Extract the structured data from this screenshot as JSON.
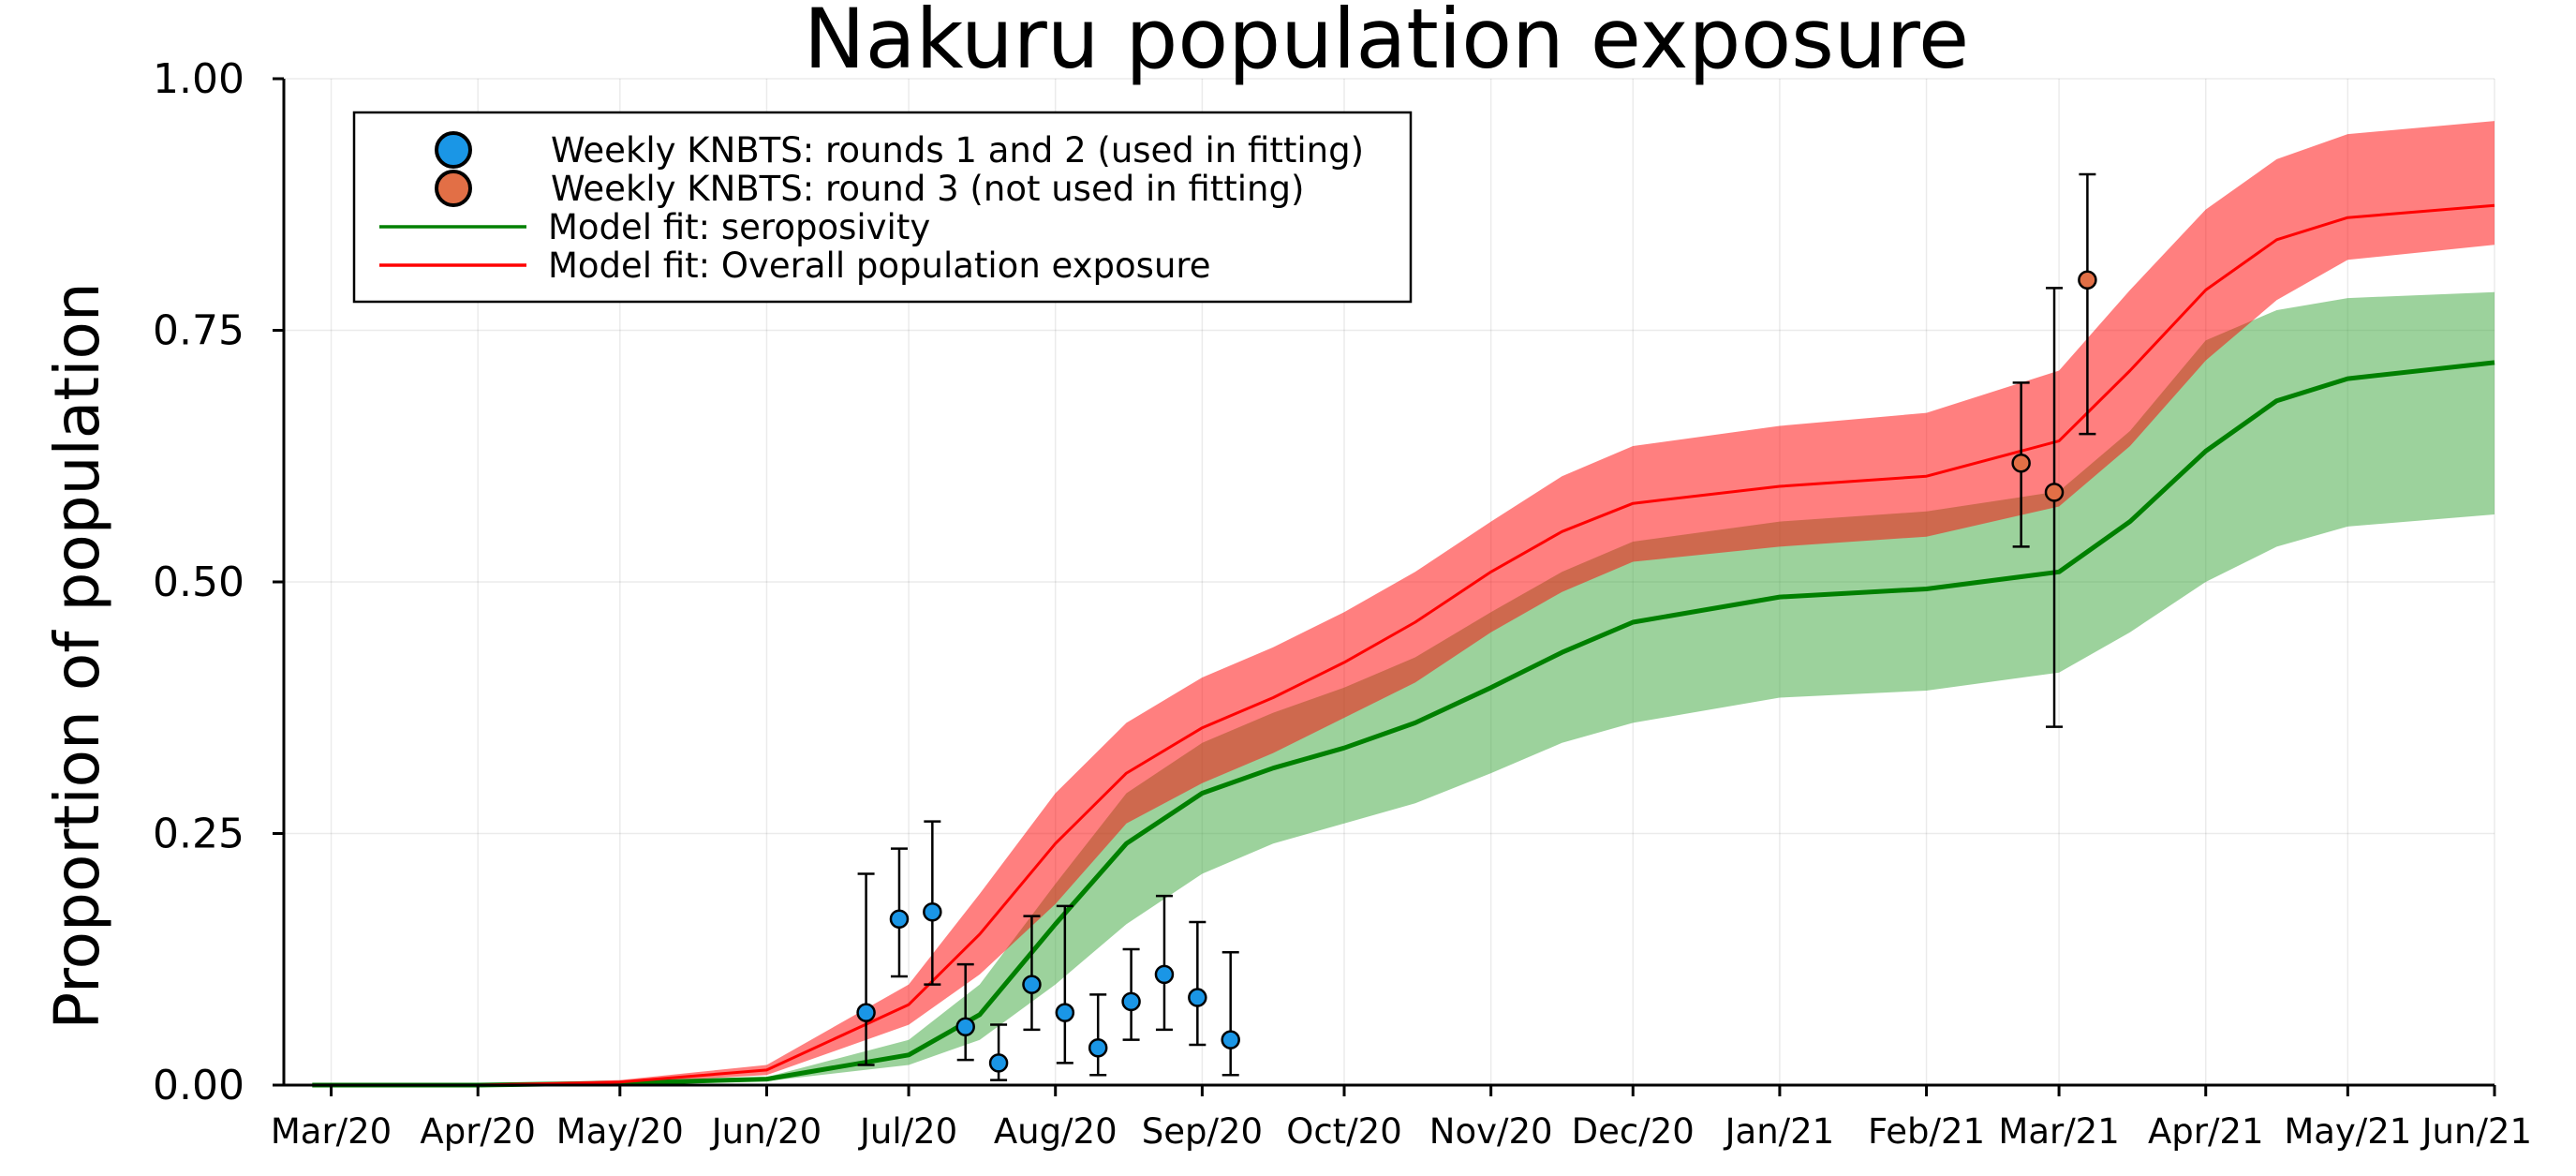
{
  "chart_data": {
    "type": "line",
    "title": "Nakuru population exposure",
    "xlabel": "",
    "ylabel": "Proportion of population",
    "x_range": [
      "2020-02-20",
      "2021-06-01"
    ],
    "ylim": [
      0,
      1
    ],
    "grid": true,
    "legend_placement": "top-left",
    "x_ticks": [
      {
        "date": "2020-03-01",
        "label": "Mar/20"
      },
      {
        "date": "2020-04-01",
        "label": "Apr/20"
      },
      {
        "date": "2020-05-01",
        "label": "May/20"
      },
      {
        "date": "2020-06-01",
        "label": "Jun/20"
      },
      {
        "date": "2020-07-01",
        "label": "Jul/20"
      },
      {
        "date": "2020-08-01",
        "label": "Aug/20"
      },
      {
        "date": "2020-09-01",
        "label": "Sep/20"
      },
      {
        "date": "2020-10-01",
        "label": "Oct/20"
      },
      {
        "date": "2020-11-01",
        "label": "Nov/20"
      },
      {
        "date": "2020-12-01",
        "label": "Dec/20"
      },
      {
        "date": "2021-01-01",
        "label": "Jan/21"
      },
      {
        "date": "2021-02-01",
        "label": "Feb/21"
      },
      {
        "date": "2021-03-01",
        "label": "Mar/21"
      },
      {
        "date": "2021-04-01",
        "label": "Apr/21"
      },
      {
        "date": "2021-05-01",
        "label": "May/21"
      },
      {
        "date": "2021-06-01",
        "label": "Jun/21"
      }
    ],
    "y_ticks": [
      {
        "value": 0.0,
        "label": "0.00"
      },
      {
        "value": 0.25,
        "label": "0.25"
      },
      {
        "value": 0.5,
        "label": "0.50"
      },
      {
        "value": 0.75,
        "label": "0.75"
      },
      {
        "value": 1.0,
        "label": "1.00"
      }
    ],
    "legend": [
      {
        "kind": "marker",
        "color": "#1a96e6",
        "label": "Weekly KNBTS: rounds 1 and 2 (used in fitting)"
      },
      {
        "kind": "marker",
        "color": "#e26f46",
        "label": "Weekly KNBTS: round 3 (not used in fitting)"
      },
      {
        "kind": "line",
        "color": "#008000",
        "label": "Model fit: seroposivity"
      },
      {
        "kind": "line",
        "color": "#ff0000",
        "label": "Model fit: Overall population exposure"
      }
    ],
    "series": [
      {
        "name": "Model fit: seroposivity",
        "kind": "line_with_band",
        "color": "#008000",
        "band_color": "#3aa53a",
        "points": [
          {
            "date": "2020-02-26",
            "y": 0.0,
            "lo": 0.0,
            "hi": 0.0
          },
          {
            "date": "2020-04-01",
            "y": 0.0,
            "lo": 0.0,
            "hi": 0.0
          },
          {
            "date": "2020-05-01",
            "y": 0.002,
            "lo": 0.001,
            "hi": 0.003
          },
          {
            "date": "2020-06-01",
            "y": 0.006,
            "lo": 0.004,
            "hi": 0.008
          },
          {
            "date": "2020-07-01",
            "y": 0.03,
            "lo": 0.02,
            "hi": 0.045
          },
          {
            "date": "2020-07-16",
            "y": 0.07,
            "lo": 0.045,
            "hi": 0.1
          },
          {
            "date": "2020-08-01",
            "y": 0.16,
            "lo": 0.1,
            "hi": 0.2
          },
          {
            "date": "2020-08-16",
            "y": 0.24,
            "lo": 0.16,
            "hi": 0.29
          },
          {
            "date": "2020-09-01",
            "y": 0.29,
            "lo": 0.21,
            "hi": 0.34
          },
          {
            "date": "2020-09-16",
            "y": 0.315,
            "lo": 0.24,
            "hi": 0.37
          },
          {
            "date": "2020-10-01",
            "y": 0.335,
            "lo": 0.26,
            "hi": 0.395
          },
          {
            "date": "2020-10-16",
            "y": 0.36,
            "lo": 0.28,
            "hi": 0.425
          },
          {
            "date": "2020-11-01",
            "y": 0.395,
            "lo": 0.31,
            "hi": 0.47
          },
          {
            "date": "2020-11-16",
            "y": 0.43,
            "lo": 0.34,
            "hi": 0.51
          },
          {
            "date": "2020-12-01",
            "y": 0.46,
            "lo": 0.36,
            "hi": 0.54
          },
          {
            "date": "2021-01-01",
            "y": 0.485,
            "lo": 0.385,
            "hi": 0.56
          },
          {
            "date": "2021-02-01",
            "y": 0.493,
            "lo": 0.392,
            "hi": 0.57
          },
          {
            "date": "2021-03-01",
            "y": 0.51,
            "lo": 0.41,
            "hi": 0.59
          },
          {
            "date": "2021-03-16",
            "y": 0.56,
            "lo": 0.45,
            "hi": 0.65
          },
          {
            "date": "2021-04-01",
            "y": 0.63,
            "lo": 0.5,
            "hi": 0.74
          },
          {
            "date": "2021-04-16",
            "y": 0.68,
            "lo": 0.535,
            "hi": 0.77
          },
          {
            "date": "2021-05-01",
            "y": 0.702,
            "lo": 0.555,
            "hi": 0.782
          },
          {
            "date": "2021-06-01",
            "y": 0.718,
            "lo": 0.567,
            "hi": 0.788
          }
        ]
      },
      {
        "name": "Model fit: Overall population exposure",
        "kind": "line_with_band",
        "color": "#ff0000",
        "band_color": "#ff0000",
        "points": [
          {
            "date": "2020-02-26",
            "y": 0.0,
            "lo": 0.0,
            "hi": 0.0
          },
          {
            "date": "2020-04-01",
            "y": 0.0,
            "lo": 0.0,
            "hi": 0.001
          },
          {
            "date": "2020-05-01",
            "y": 0.003,
            "lo": 0.002,
            "hi": 0.005
          },
          {
            "date": "2020-06-01",
            "y": 0.015,
            "lo": 0.01,
            "hi": 0.02
          },
          {
            "date": "2020-07-01",
            "y": 0.08,
            "lo": 0.06,
            "hi": 0.1
          },
          {
            "date": "2020-07-16",
            "y": 0.15,
            "lo": 0.11,
            "hi": 0.19
          },
          {
            "date": "2020-08-01",
            "y": 0.24,
            "lo": 0.18,
            "hi": 0.29
          },
          {
            "date": "2020-08-16",
            "y": 0.31,
            "lo": 0.26,
            "hi": 0.36
          },
          {
            "date": "2020-09-01",
            "y": 0.355,
            "lo": 0.3,
            "hi": 0.405
          },
          {
            "date": "2020-09-16",
            "y": 0.385,
            "lo": 0.33,
            "hi": 0.435
          },
          {
            "date": "2020-10-01",
            "y": 0.42,
            "lo": 0.365,
            "hi": 0.47
          },
          {
            "date": "2020-10-16",
            "y": 0.46,
            "lo": 0.4,
            "hi": 0.51
          },
          {
            "date": "2020-11-01",
            "y": 0.51,
            "lo": 0.45,
            "hi": 0.56
          },
          {
            "date": "2020-11-16",
            "y": 0.55,
            "lo": 0.49,
            "hi": 0.605
          },
          {
            "date": "2020-12-01",
            "y": 0.578,
            "lo": 0.52,
            "hi": 0.635
          },
          {
            "date": "2021-01-01",
            "y": 0.595,
            "lo": 0.535,
            "hi": 0.655
          },
          {
            "date": "2021-02-01",
            "y": 0.605,
            "lo": 0.545,
            "hi": 0.668
          },
          {
            "date": "2021-03-01",
            "y": 0.64,
            "lo": 0.575,
            "hi": 0.71
          },
          {
            "date": "2021-03-16",
            "y": 0.71,
            "lo": 0.635,
            "hi": 0.79
          },
          {
            "date": "2021-04-01",
            "y": 0.79,
            "lo": 0.72,
            "hi": 0.87
          },
          {
            "date": "2021-04-16",
            "y": 0.84,
            "lo": 0.78,
            "hi": 0.92
          },
          {
            "date": "2021-05-01",
            "y": 0.862,
            "lo": 0.82,
            "hi": 0.945
          },
          {
            "date": "2021-06-01",
            "y": 0.874,
            "lo": 0.835,
            "hi": 0.958
          }
        ]
      },
      {
        "name": "Weekly KNBTS: rounds 1 and 2 (used in fitting)",
        "kind": "points_with_errorbars",
        "color": "#1a96e6",
        "points": [
          {
            "date": "2020-06-22",
            "y": 0.072,
            "lo": 0.02,
            "hi": 0.21
          },
          {
            "date": "2020-06-29",
            "y": 0.165,
            "lo": 0.108,
            "hi": 0.235
          },
          {
            "date": "2020-07-06",
            "y": 0.172,
            "lo": 0.1,
            "hi": 0.262
          },
          {
            "date": "2020-07-13",
            "y": 0.058,
            "lo": 0.025,
            "hi": 0.12
          },
          {
            "date": "2020-07-20",
            "y": 0.022,
            "lo": 0.005,
            "hi": 0.06
          },
          {
            "date": "2020-07-27",
            "y": 0.1,
            "lo": 0.055,
            "hi": 0.168
          },
          {
            "date": "2020-08-03",
            "y": 0.072,
            "lo": 0.022,
            "hi": 0.178
          },
          {
            "date": "2020-08-10",
            "y": 0.037,
            "lo": 0.01,
            "hi": 0.09
          },
          {
            "date": "2020-08-17",
            "y": 0.083,
            "lo": 0.045,
            "hi": 0.135
          },
          {
            "date": "2020-08-24",
            "y": 0.11,
            "lo": 0.055,
            "hi": 0.188
          },
          {
            "date": "2020-08-31",
            "y": 0.087,
            "lo": 0.04,
            "hi": 0.162
          },
          {
            "date": "2020-09-07",
            "y": 0.045,
            "lo": 0.01,
            "hi": 0.132
          }
        ]
      },
      {
        "name": "Weekly KNBTS: round 3 (not used in fitting)",
        "kind": "points_with_errorbars",
        "color": "#e26f46",
        "points": [
          {
            "date": "2021-02-21",
            "y": 0.618,
            "lo": 0.535,
            "hi": 0.698
          },
          {
            "date": "2021-02-28",
            "y": 0.589,
            "lo": 0.356,
            "hi": 0.792
          },
          {
            "date": "2021-03-07",
            "y": 0.8,
            "lo": 0.647,
            "hi": 0.905
          }
        ]
      }
    ]
  }
}
